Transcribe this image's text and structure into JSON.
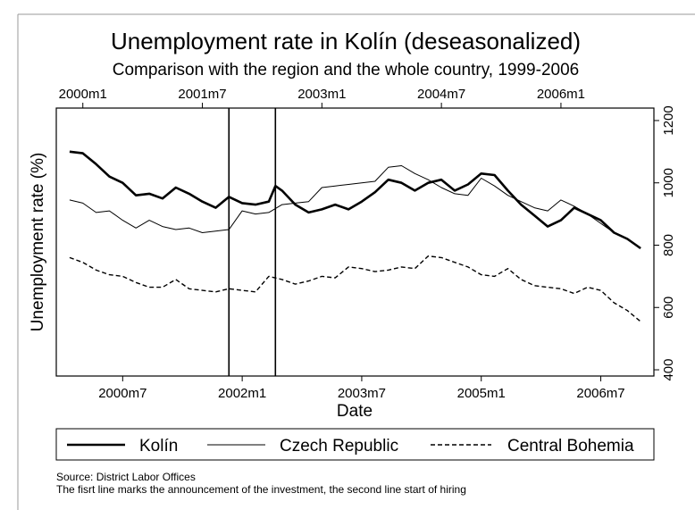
{
  "chart_data": {
    "type": "line",
    "title": "Unemployment rate in Kolín (deseasonalized)",
    "subtitle": "Comparison with the region and the whole country, 1999-2006",
    "xlabel": "Date",
    "ylabel": "Unemployment rate (%)",
    "x_range": [
      "1999m9",
      "2007m3"
    ],
    "y_left_ticks": [],
    "y_right_ticks": [
      400,
      600,
      800,
      1000,
      1200
    ],
    "y_right_range": [
      380,
      1240
    ],
    "top_ticks": [
      "2000m1",
      "2001m7",
      "2003m1",
      "2004m7",
      "2006m1"
    ],
    "bottom_ticks": [
      "2000m7",
      "2002m1",
      "2003m7",
      "2005m1",
      "2006m7"
    ],
    "vertical_lines": [
      "2001m11",
      "2002m6"
    ],
    "grid": false,
    "legend_position": "bottom",
    "legend": [
      "Kolín",
      "Czech Republic",
      "Central Bohemia"
    ],
    "series": [
      {
        "name": "Kolín",
        "style": "thick",
        "points": [
          [
            "1999m11",
            1100
          ],
          [
            "2000m1",
            1095
          ],
          [
            "2000m3",
            1060
          ],
          [
            "2000m5",
            1020
          ],
          [
            "2000m7",
            1000
          ],
          [
            "2000m9",
            960
          ],
          [
            "2000m11",
            965
          ],
          [
            "2001m1",
            950
          ],
          [
            "2001m3",
            985
          ],
          [
            "2001m5",
            965
          ],
          [
            "2001m7",
            940
          ],
          [
            "2001m9",
            920
          ],
          [
            "2001m11",
            955
          ],
          [
            "2002m1",
            935
          ],
          [
            "2002m3",
            930
          ],
          [
            "2002m5",
            940
          ],
          [
            "2002m6",
            990
          ],
          [
            "2002m7",
            975
          ],
          [
            "2002m9",
            930
          ],
          [
            "2002m11",
            905
          ],
          [
            "2003m1",
            915
          ],
          [
            "2003m3",
            930
          ],
          [
            "2003m5",
            915
          ],
          [
            "2003m7",
            940
          ],
          [
            "2003m9",
            970
          ],
          [
            "2003m11",
            1010
          ],
          [
            "2004m1",
            1000
          ],
          [
            "2004m3",
            975
          ],
          [
            "2004m5",
            1000
          ],
          [
            "2004m7",
            1010
          ],
          [
            "2004m9",
            975
          ],
          [
            "2004m11",
            995
          ],
          [
            "2005m1",
            1030
          ],
          [
            "2005m3",
            1025
          ],
          [
            "2005m5",
            975
          ],
          [
            "2005m7",
            930
          ],
          [
            "2005m9",
            895
          ],
          [
            "2005m11",
            860
          ],
          [
            "2006m1",
            880
          ],
          [
            "2006m3",
            920
          ],
          [
            "2006m5",
            900
          ],
          [
            "2006m7",
            880
          ],
          [
            "2006m9",
            840
          ],
          [
            "2006m11",
            820
          ],
          [
            "2007m1",
            790
          ]
        ]
      },
      {
        "name": "Czech Republic",
        "style": "thin",
        "points": [
          [
            "1999m11",
            945
          ],
          [
            "2000m1",
            935
          ],
          [
            "2000m3",
            905
          ],
          [
            "2000m5",
            910
          ],
          [
            "2000m7",
            880
          ],
          [
            "2000m9",
            855
          ],
          [
            "2000m11",
            880
          ],
          [
            "2001m1",
            860
          ],
          [
            "2001m3",
            850
          ],
          [
            "2001m5",
            855
          ],
          [
            "2001m7",
            840
          ],
          [
            "2001m9",
            845
          ],
          [
            "2001m11",
            850
          ],
          [
            "2002m1",
            910
          ],
          [
            "2002m3",
            900
          ],
          [
            "2002m5",
            905
          ],
          [
            "2002m7",
            930
          ],
          [
            "2002m9",
            935
          ],
          [
            "2002m11",
            940
          ],
          [
            "2003m1",
            985
          ],
          [
            "2003m3",
            990
          ],
          [
            "2003m5",
            995
          ],
          [
            "2003m7",
            1000
          ],
          [
            "2003m9",
            1005
          ],
          [
            "2003m11",
            1050
          ],
          [
            "2004m1",
            1055
          ],
          [
            "2004m3",
            1030
          ],
          [
            "2004m5",
            1010
          ],
          [
            "2004m7",
            985
          ],
          [
            "2004m9",
            965
          ],
          [
            "2004m11",
            960
          ],
          [
            "2005m1",
            1015
          ],
          [
            "2005m3",
            990
          ],
          [
            "2005m5",
            960
          ],
          [
            "2005m7",
            940
          ],
          [
            "2005m9",
            920
          ],
          [
            "2005m11",
            910
          ],
          [
            "2006m1",
            945
          ],
          [
            "2006m3",
            925
          ],
          [
            "2006m5",
            900
          ],
          [
            "2006m7",
            870
          ],
          [
            "2006m9",
            840
          ],
          [
            "2006m11",
            820
          ],
          [
            "2007m1",
            790
          ]
        ]
      },
      {
        "name": "Central Bohemia",
        "style": "dashed",
        "points": [
          [
            "1999m11",
            760
          ],
          [
            "2000m1",
            745
          ],
          [
            "2000m3",
            720
          ],
          [
            "2000m5",
            705
          ],
          [
            "2000m7",
            700
          ],
          [
            "2000m9",
            680
          ],
          [
            "2000m11",
            665
          ],
          [
            "2001m1",
            665
          ],
          [
            "2001m3",
            690
          ],
          [
            "2001m5",
            660
          ],
          [
            "2001m7",
            655
          ],
          [
            "2001m9",
            650
          ],
          [
            "2001m11",
            660
          ],
          [
            "2002m1",
            655
          ],
          [
            "2002m3",
            650
          ],
          [
            "2002m5",
            700
          ],
          [
            "2002m7",
            690
          ],
          [
            "2002m9",
            675
          ],
          [
            "2002m11",
            685
          ],
          [
            "2003m1",
            700
          ],
          [
            "2003m3",
            695
          ],
          [
            "2003m5",
            730
          ],
          [
            "2003m7",
            725
          ],
          [
            "2003m9",
            715
          ],
          [
            "2003m11",
            720
          ],
          [
            "2004m1",
            730
          ],
          [
            "2004m3",
            725
          ],
          [
            "2004m5",
            765
          ],
          [
            "2004m7",
            760
          ],
          [
            "2004m9",
            745
          ],
          [
            "2004m11",
            730
          ],
          [
            "2005m1",
            705
          ],
          [
            "2005m3",
            700
          ],
          [
            "2005m5",
            725
          ],
          [
            "2005m7",
            690
          ],
          [
            "2005m9",
            670
          ],
          [
            "2005m11",
            665
          ],
          [
            "2006m1",
            660
          ],
          [
            "2006m3",
            645
          ],
          [
            "2006m5",
            665
          ],
          [
            "2006m7",
            655
          ],
          [
            "2006m9",
            615
          ],
          [
            "2006m11",
            590
          ],
          [
            "2007m1",
            555
          ]
        ]
      }
    ]
  },
  "notes": {
    "source": "Source: District Labor Offices",
    "explanation": "The fisrt line marks the announcement of the investment, the second line start of hiring"
  },
  "colors": {
    "line": "#000000",
    "frame": "#000000",
    "outer_frame": "#9a9a9a",
    "background": "#ffffff"
  }
}
